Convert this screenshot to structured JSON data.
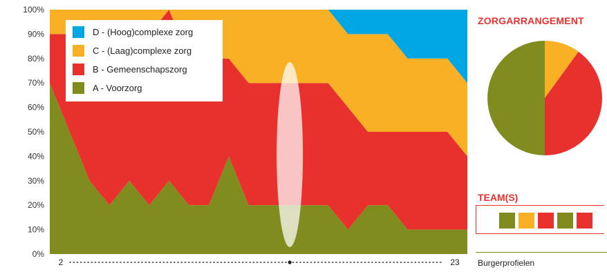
{
  "chart_data": [
    {
      "type": "area",
      "stacked": true,
      "x": [
        2,
        3,
        4,
        5,
        6,
        7,
        8,
        9,
        10,
        11,
        12,
        13,
        14,
        15,
        16,
        17,
        18,
        19,
        20,
        21,
        22,
        23
      ],
      "series": [
        {
          "name": "A - Voorzorg",
          "color": "#818c1f",
          "values": [
            70,
            50,
            30,
            20,
            30,
            20,
            30,
            20,
            20,
            40,
            20,
            20,
            20,
            20,
            20,
            10,
            20,
            20,
            10,
            10,
            10,
            10
          ]
        },
        {
          "name": "B - Gemeenschapszorg",
          "color": "#e8302c",
          "values": [
            20,
            40,
            60,
            70,
            60,
            70,
            70,
            60,
            60,
            40,
            50,
            50,
            50,
            50,
            50,
            50,
            30,
            30,
            40,
            40,
            40,
            30
          ]
        },
        {
          "name": "C - (Laag)complexe zorg",
          "color": "#f9b025",
          "values": [
            10,
            10,
            10,
            10,
            10,
            10,
            0,
            20,
            20,
            20,
            30,
            30,
            30,
            30,
            30,
            30,
            40,
            40,
            30,
            30,
            30,
            30
          ]
        },
        {
          "name": "D - (Hoog)complexe zorg",
          "color": "#00a6e4",
          "values": [
            0,
            0,
            0,
            0,
            0,
            0,
            0,
            0,
            0,
            0,
            0,
            0,
            0,
            0,
            0,
            10,
            10,
            10,
            20,
            20,
            20,
            30
          ]
        }
      ],
      "y_ticks": [
        "0%",
        "10%",
        "20%",
        "30%",
        "40%",
        "50%",
        "60%",
        "70%",
        "80%",
        "90%",
        "100%"
      ],
      "ylim": [
        0,
        100
      ],
      "x_tick_labels": {
        "start": "2",
        "end": "23"
      },
      "legend_order": [
        "D - (Hoog)complexe zorg",
        "C - (Laag)complexe zorg",
        "B - Gemeenschapszorg",
        "A - Voorzorg"
      ],
      "legend_position": "top-left",
      "selected_x": 14,
      "grid": false
    },
    {
      "type": "pie",
      "title": "ZORGARRANGEMENT",
      "slices": [
        {
          "label": "C - (Laag)complexe zorg",
          "value": 10,
          "color": "#f9b025"
        },
        {
          "label": "B - Gemeenschapszorg",
          "value": 40,
          "color": "#e8302c"
        },
        {
          "label": "A - Voorzorg",
          "value": 50,
          "color": "#818c1f"
        }
      ]
    }
  ],
  "teams": {
    "title": "TEAM(S)",
    "squares": [
      "#818c1f",
      "#f9b025",
      "#e8302c",
      "#818c1f",
      "#e8302c"
    ]
  },
  "footer": {
    "label": "Burgerprofielen"
  }
}
